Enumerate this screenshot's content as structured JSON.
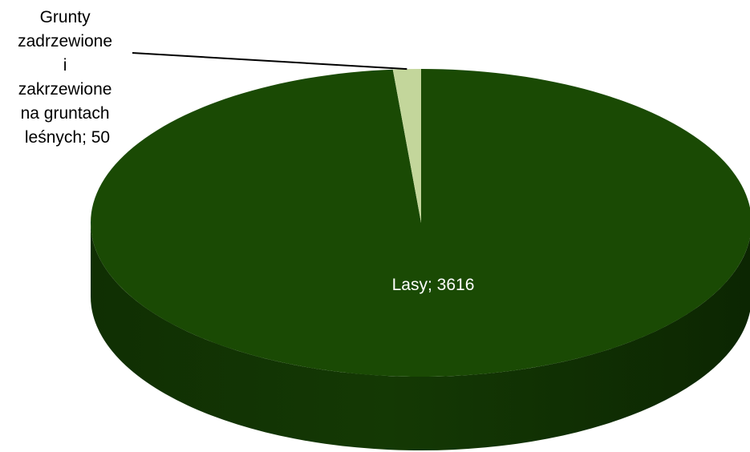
{
  "chart_data": {
    "type": "pie",
    "title": "",
    "slices": [
      {
        "label": "Lasy",
        "value": 3616,
        "label_text": "Lasy; 3616",
        "color": "#1a4a04"
      },
      {
        "label": "Grunty zadrzewione i zakrzewione na gruntach leśnych",
        "value": 50,
        "label_lines": [
          "Grunty",
          "zadrzewione",
          "i",
          "zakrzewione",
          "na gruntach",
          "leśnych; 50"
        ],
        "color": "#c3d69b"
      }
    ],
    "legend": "none",
    "style": "3d"
  }
}
